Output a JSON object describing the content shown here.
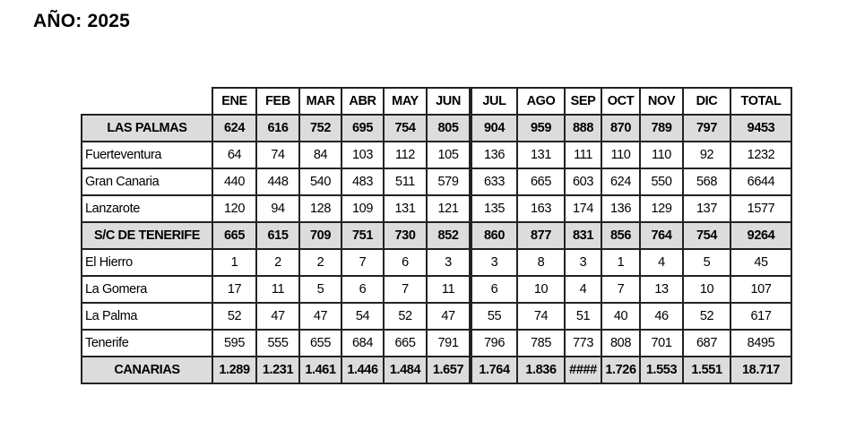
{
  "title": "AÑO: 2025",
  "table": {
    "columns": [
      "ENE",
      "FEB",
      "MAR",
      "ABR",
      "MAY",
      "JUN",
      "JUL",
      "AGO",
      "SEP",
      "OCT",
      "NOV",
      "DIC",
      "TOTAL"
    ],
    "rows": [
      {
        "name": "LAS PALMAS",
        "subtotal": true,
        "values": [
          "624",
          "616",
          "752",
          "695",
          "754",
          "805",
          "904",
          "959",
          "888",
          "870",
          "789",
          "797",
          "9453"
        ]
      },
      {
        "name": "Fuerteventura",
        "subtotal": false,
        "values": [
          "64",
          "74",
          "84",
          "103",
          "112",
          "105",
          "136",
          "131",
          "111",
          "110",
          "110",
          "92",
          "1232"
        ]
      },
      {
        "name": "Gran Canaria",
        "subtotal": false,
        "values": [
          "440",
          "448",
          "540",
          "483",
          "511",
          "579",
          "633",
          "665",
          "603",
          "624",
          "550",
          "568",
          "6644"
        ]
      },
      {
        "name": "Lanzarote",
        "subtotal": false,
        "values": [
          "120",
          "94",
          "128",
          "109",
          "131",
          "121",
          "135",
          "163",
          "174",
          "136",
          "129",
          "137",
          "1577"
        ]
      },
      {
        "name": "S/C DE TENERIFE",
        "subtotal": true,
        "values": [
          "665",
          "615",
          "709",
          "751",
          "730",
          "852",
          "860",
          "877",
          "831",
          "856",
          "764",
          "754",
          "9264"
        ]
      },
      {
        "name": "El Hierro",
        "subtotal": false,
        "values": [
          "1",
          "2",
          "2",
          "7",
          "6",
          "3",
          "3",
          "8",
          "3",
          "1",
          "4",
          "5",
          "45"
        ]
      },
      {
        "name": "La Gomera",
        "subtotal": false,
        "values": [
          "17",
          "11",
          "5",
          "6",
          "7",
          "11",
          "6",
          "10",
          "4",
          "7",
          "13",
          "10",
          "107"
        ]
      },
      {
        "name": "La Palma",
        "subtotal": false,
        "values": [
          "52",
          "47",
          "47",
          "54",
          "52",
          "47",
          "55",
          "74",
          "51",
          "40",
          "46",
          "52",
          "617"
        ]
      },
      {
        "name": "Tenerife",
        "subtotal": false,
        "values": [
          "595",
          "555",
          "655",
          "684",
          "665",
          "791",
          "796",
          "785",
          "773",
          "808",
          "701",
          "687",
          "8495"
        ]
      },
      {
        "name": "CANARIAS",
        "subtotal": true,
        "values": [
          "1.289",
          "1.231",
          "1.461",
          "1.446",
          "1.484",
          "1.657",
          "1.764",
          "1.836",
          "####",
          "1.726",
          "1.553",
          "1.551",
          "18.717"
        ]
      }
    ]
  },
  "colors": {
    "subtotal_bg": "#dcdcdc",
    "border": "#222222"
  }
}
